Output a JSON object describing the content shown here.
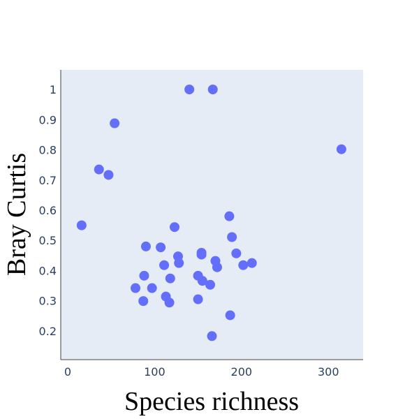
{
  "chart_data": {
    "type": "scatter",
    "title": "",
    "xlabel": "Species richness",
    "ylabel": "Bray Curtis",
    "xlim": [
      -8,
      340
    ],
    "ylim": [
      0.105,
      1.065
    ],
    "x_ticks": [
      0,
      100,
      200,
      300
    ],
    "y_ticks": [
      0.2,
      0.3,
      0.4,
      0.5,
      0.6,
      0.7,
      0.8,
      0.9,
      1
    ],
    "grid": false,
    "legend": "none",
    "colors": {
      "marker": "#636efa",
      "plot_bg": "#e5ecf6",
      "axis_line": "#444444",
      "tick_text": "#2a3f5f"
    },
    "series": [
      {
        "points": [
          {
            "x": 16,
            "y": 0.55
          },
          {
            "x": 36,
            "y": 0.735
          },
          {
            "x": 47,
            "y": 0.717
          },
          {
            "x": 54,
            "y": 0.888
          },
          {
            "x": 140,
            "y": 1.0
          },
          {
            "x": 167,
            "y": 1.0
          },
          {
            "x": 315,
            "y": 0.802
          },
          {
            "x": 78,
            "y": 0.342
          },
          {
            "x": 87,
            "y": 0.299
          },
          {
            "x": 88,
            "y": 0.383
          },
          {
            "x": 90,
            "y": 0.48
          },
          {
            "x": 97,
            "y": 0.342
          },
          {
            "x": 107,
            "y": 0.477
          },
          {
            "x": 111,
            "y": 0.418
          },
          {
            "x": 113,
            "y": 0.314
          },
          {
            "x": 117,
            "y": 0.294
          },
          {
            "x": 118,
            "y": 0.374
          },
          {
            "x": 123,
            "y": 0.544
          },
          {
            "x": 127,
            "y": 0.447
          },
          {
            "x": 128,
            "y": 0.425
          },
          {
            "x": 150,
            "y": 0.383
          },
          {
            "x": 150,
            "y": 0.305
          },
          {
            "x": 154,
            "y": 0.459
          },
          {
            "x": 154,
            "y": 0.453
          },
          {
            "x": 155,
            "y": 0.366
          },
          {
            "x": 164,
            "y": 0.353
          },
          {
            "x": 166,
            "y": 0.183
          },
          {
            "x": 170,
            "y": 0.432
          },
          {
            "x": 172,
            "y": 0.411
          },
          {
            "x": 186,
            "y": 0.58
          },
          {
            "x": 187,
            "y": 0.252
          },
          {
            "x": 189,
            "y": 0.511
          },
          {
            "x": 194,
            "y": 0.457
          },
          {
            "x": 202,
            "y": 0.418
          },
          {
            "x": 212,
            "y": 0.425
          }
        ]
      }
    ]
  }
}
